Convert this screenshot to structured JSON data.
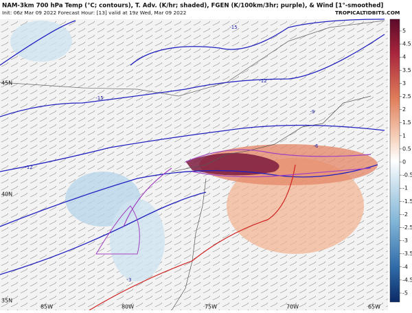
{
  "header": {
    "title": "NAM-3km 700 hPa Temp (°C; contours), T. Adv. (K/hr; shaded), FGEN (K/100km/3hr; purple), & Wind [1°-smoothed]",
    "subtitle": "Init: 06z Mar 09 2022   Forecast Hour: [13]   valid at 19z Wed, Mar 09 2022",
    "credit": "TROPICALTIDBITS.COM"
  },
  "map": {
    "latitude_labels": [
      "45N",
      "40N",
      "35N"
    ],
    "longitude_labels": [
      "85W",
      "80W",
      "75W",
      "70W",
      "65W"
    ],
    "contour_labels": [
      "-15",
      "-12",
      "-15",
      "-9",
      "-6",
      "-12",
      "-3"
    ]
  },
  "colorbar": {
    "ticks": [
      5,
      4.5,
      4,
      3.5,
      3,
      2.5,
      2,
      1.5,
      1,
      0.5,
      0,
      -0.5,
      -1,
      -1.5,
      -2,
      -2.5,
      -3,
      -3.5,
      -4,
      -4.5,
      -5
    ]
  }
}
